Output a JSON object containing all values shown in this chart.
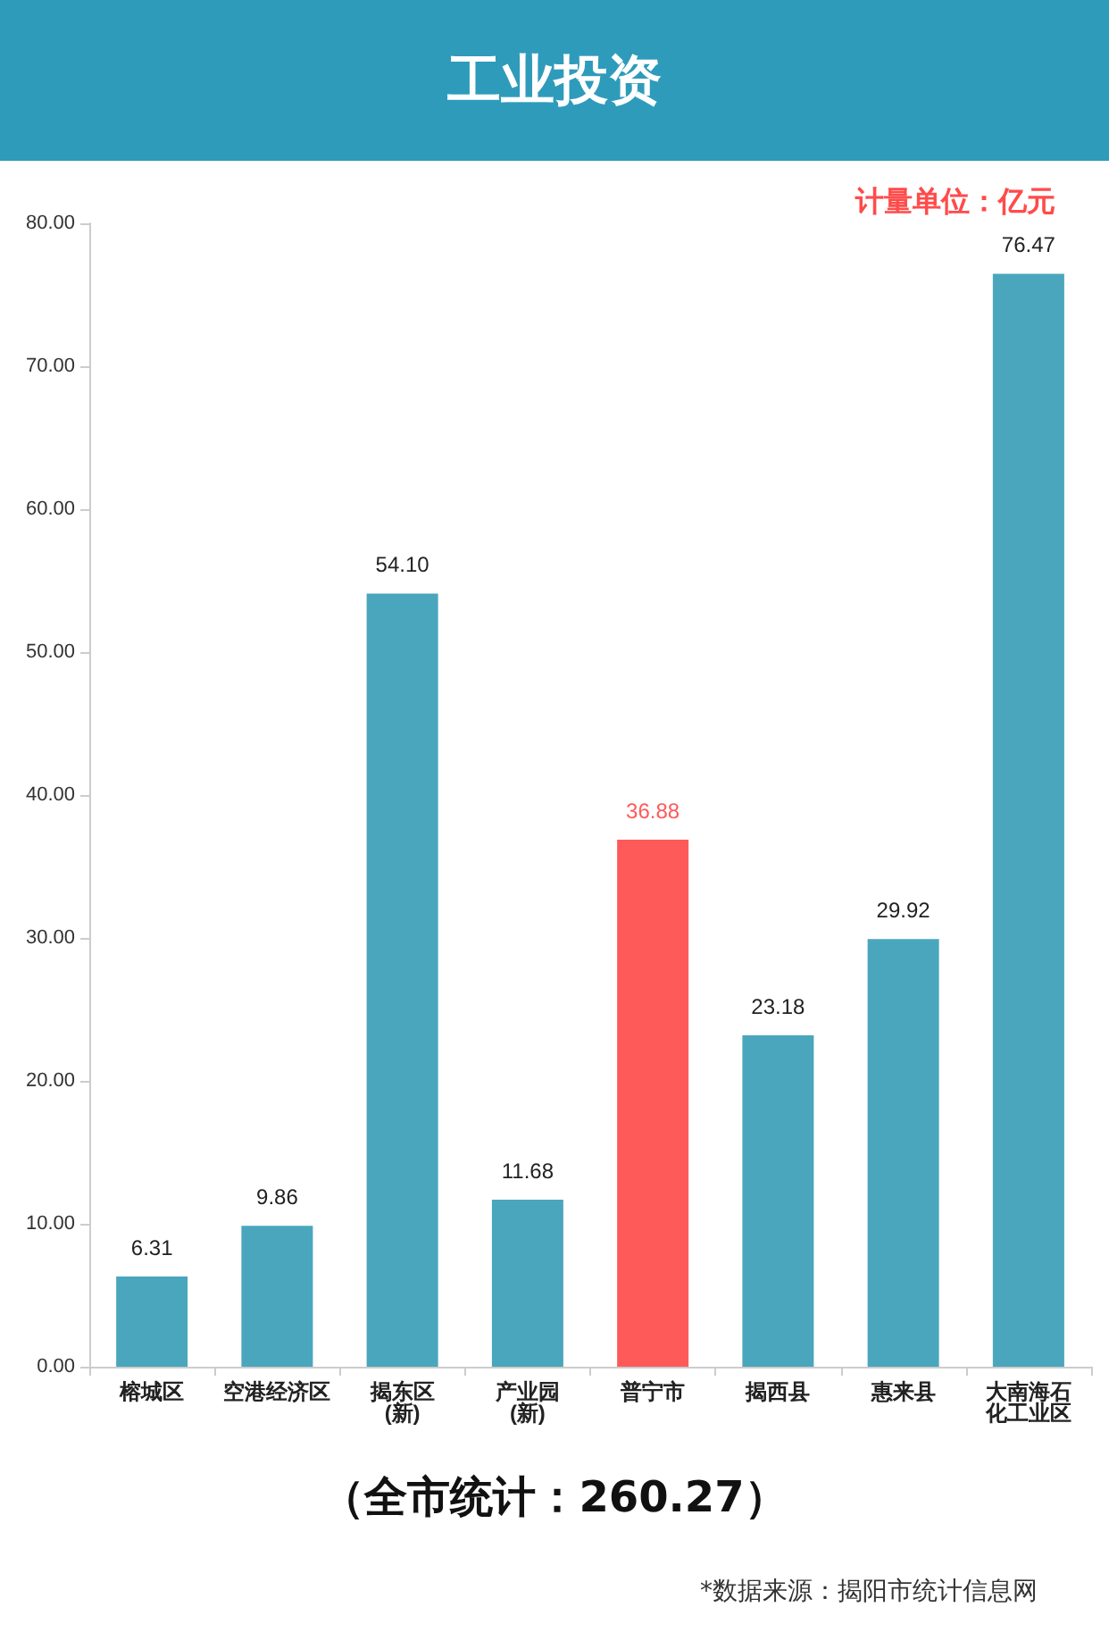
{
  "chart_data": {
    "type": "bar",
    "title": "工业投资",
    "categories": [
      "榕城区",
      "空港经济区",
      "揭东区(新)",
      "产业园(新)",
      "普宁市",
      "揭西县",
      "惠来县",
      "大南海石化工业区"
    ],
    "values": [
      6.31,
      9.86,
      54.1,
      11.68,
      36.88,
      23.18,
      29.92,
      76.47
    ],
    "value_labels": [
      "6.31",
      "9.86",
      "54.10",
      "11.68",
      "36.88",
      "23.18",
      "29.92",
      "76.47"
    ],
    "colors": [
      "#4aa6bd",
      "#4aa6bd",
      "#4aa6bd",
      "#4aa6bd",
      "#ff5a5a",
      "#4aa6bd",
      "#4aa6bd",
      "#4aa6bd"
    ],
    "ylim": [
      0,
      80
    ],
    "yticks": [
      {
        "value": 0,
        "label": "0.00"
      },
      {
        "value": 10,
        "label": "10.00"
      },
      {
        "value": 20,
        "label": "20.00"
      },
      {
        "value": 30,
        "label": "30.00"
      },
      {
        "value": 40,
        "label": "40.00"
      },
      {
        "value": 50,
        "label": "50.00"
      },
      {
        "value": 60,
        "label": "60.00"
      },
      {
        "value": 70,
        "label": "70.00"
      },
      {
        "value": 80,
        "label": "80.00"
      }
    ],
    "grid": false,
    "annotations": [
      "计量单位：亿元",
      "（全市统计：260.27）",
      "*数据来源：揭阳市统计信息网"
    ]
  }
}
